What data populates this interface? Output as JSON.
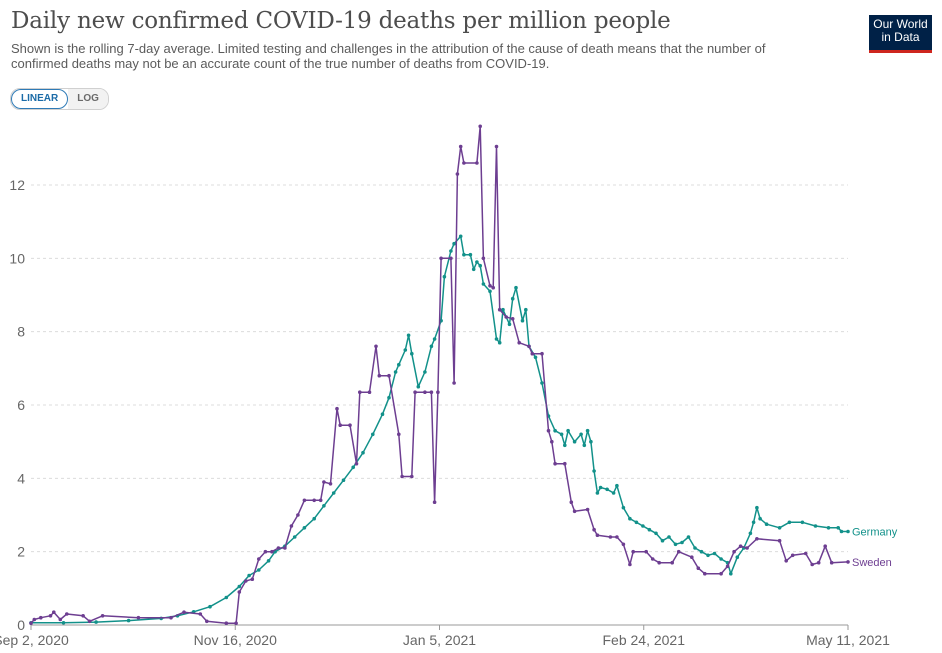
{
  "title": "Daily new confirmed COVID-19 deaths per million people",
  "subtitle": "Shown is the rolling 7-day average. Limited testing and challenges in the attribution of the cause of death means that the number of confirmed deaths may not be an accurate count of the true number of deaths from COVID-19.",
  "logo": {
    "line1": "Our World",
    "line2": "in Data",
    "bg": "#002147",
    "accent": "#ce261e"
  },
  "scale_toggle": {
    "linear": "LINEAR",
    "log": "LOG",
    "selected": "LINEAR"
  },
  "chart_data": {
    "type": "line",
    "title": "Daily new confirmed COVID-19 deaths per million people",
    "xlabel": "",
    "ylabel": "",
    "x_start": "2020-09-02",
    "x_end": "2021-05-11",
    "x_ticks": [
      "Sep 2, 2020",
      "Nov 16, 2020",
      "Jan 5, 2021",
      "Feb 24, 2021",
      "May 11, 2021"
    ],
    "ylim": [
      0,
      13.5
    ],
    "y_ticks": [
      0,
      2,
      4,
      6,
      8,
      10,
      12
    ],
    "grid": "horizontal dashed",
    "series": [
      {
        "name": "Germany",
        "color": "#12918a",
        "points": [
          [
            "2020-09-02",
            0.06
          ],
          [
            "2020-09-12",
            0.06
          ],
          [
            "2020-09-22",
            0.08
          ],
          [
            "2020-10-02",
            0.12
          ],
          [
            "2020-10-12",
            0.18
          ],
          [
            "2020-10-17",
            0.25
          ],
          [
            "2020-10-22",
            0.36
          ],
          [
            "2020-10-27",
            0.5
          ],
          [
            "2020-11-01",
            0.75
          ],
          [
            "2020-11-05",
            1.05
          ],
          [
            "2020-11-08",
            1.35
          ],
          [
            "2020-11-11",
            1.5
          ],
          [
            "2020-11-14",
            1.75
          ],
          [
            "2020-11-16",
            2.0
          ],
          [
            "2020-11-19",
            2.15
          ],
          [
            "2020-11-22",
            2.4
          ],
          [
            "2020-11-25",
            2.65
          ],
          [
            "2020-11-28",
            2.9
          ],
          [
            "2020-12-01",
            3.25
          ],
          [
            "2020-12-04",
            3.6
          ],
          [
            "2020-12-07",
            3.95
          ],
          [
            "2020-12-10",
            4.3
          ],
          [
            "2020-12-13",
            4.7
          ],
          [
            "2020-12-16",
            5.2
          ],
          [
            "2020-12-19",
            5.75
          ],
          [
            "2020-12-21",
            6.2
          ],
          [
            "2020-12-23",
            6.9
          ],
          [
            "2020-12-24",
            7.1
          ],
          [
            "2020-12-26",
            7.5
          ],
          [
            "2020-12-27",
            7.9
          ],
          [
            "2020-12-28",
            7.4
          ],
          [
            "2020-12-30",
            6.5
          ],
          [
            "2021-01-01",
            6.9
          ],
          [
            "2021-01-03",
            7.6
          ],
          [
            "2021-01-04",
            7.8
          ],
          [
            "2021-01-06",
            8.3
          ],
          [
            "2021-01-07",
            9.5
          ],
          [
            "2021-01-09",
            10.2
          ],
          [
            "2021-01-10",
            10.4
          ],
          [
            "2021-01-12",
            10.6
          ],
          [
            "2021-01-13",
            10.1
          ],
          [
            "2021-01-15",
            10.1
          ],
          [
            "2021-01-16",
            9.7
          ],
          [
            "2021-01-17",
            9.9
          ],
          [
            "2021-01-18",
            9.8
          ],
          [
            "2021-01-19",
            9.3
          ],
          [
            "2021-01-21",
            9.1
          ],
          [
            "2021-01-23",
            7.8
          ],
          [
            "2021-01-24",
            7.7
          ],
          [
            "2021-01-25",
            8.6
          ],
          [
            "2021-01-27",
            8.2
          ],
          [
            "2021-01-28",
            8.9
          ],
          [
            "2021-01-29",
            9.2
          ],
          [
            "2021-01-31",
            8.3
          ],
          [
            "2021-02-01",
            8.6
          ],
          [
            "2021-02-02",
            7.6
          ],
          [
            "2021-02-04",
            7.3
          ],
          [
            "2021-02-06",
            6.6
          ],
          [
            "2021-02-08",
            5.7
          ],
          [
            "2021-02-10",
            5.3
          ],
          [
            "2021-02-12",
            5.2
          ],
          [
            "2021-02-13",
            4.9
          ],
          [
            "2021-02-14",
            5.3
          ],
          [
            "2021-02-16",
            5.0
          ],
          [
            "2021-02-18",
            5.2
          ],
          [
            "2021-02-19",
            4.9
          ],
          [
            "2021-02-20",
            5.3
          ],
          [
            "2021-02-21",
            5.0
          ],
          [
            "2021-02-22",
            4.2
          ],
          [
            "2021-02-23",
            3.6
          ],
          [
            "2021-02-24",
            3.75
          ],
          [
            "2021-02-26",
            3.7
          ],
          [
            "2021-02-28",
            3.6
          ],
          [
            "2021-03-01",
            3.8
          ],
          [
            "2021-03-03",
            3.2
          ],
          [
            "2021-03-05",
            2.9
          ],
          [
            "2021-03-07",
            2.8
          ],
          [
            "2021-03-09",
            2.7
          ],
          [
            "2021-03-11",
            2.6
          ],
          [
            "2021-03-13",
            2.5
          ],
          [
            "2021-03-15",
            2.3
          ],
          [
            "2021-03-17",
            2.4
          ],
          [
            "2021-03-19",
            2.2
          ],
          [
            "2021-03-21",
            2.25
          ],
          [
            "2021-03-23",
            2.4
          ],
          [
            "2021-03-25",
            2.1
          ],
          [
            "2021-03-27",
            2.0
          ],
          [
            "2021-03-29",
            1.9
          ],
          [
            "2021-03-31",
            1.95
          ],
          [
            "2021-04-02",
            1.8
          ],
          [
            "2021-04-04",
            1.7
          ],
          [
            "2021-04-05",
            1.4
          ],
          [
            "2021-04-07",
            1.85
          ],
          [
            "2021-04-09",
            2.1
          ],
          [
            "2021-04-11",
            2.5
          ],
          [
            "2021-04-12",
            2.8
          ],
          [
            "2021-04-13",
            3.2
          ],
          [
            "2021-04-14",
            2.9
          ],
          [
            "2021-04-16",
            2.75
          ],
          [
            "2021-04-20",
            2.65
          ],
          [
            "2021-04-23",
            2.8
          ],
          [
            "2021-04-27",
            2.8
          ],
          [
            "2021-05-01",
            2.7
          ],
          [
            "2021-05-05",
            2.65
          ],
          [
            "2021-05-08",
            2.65
          ],
          [
            "2021-05-09",
            2.55
          ],
          [
            "2021-05-11",
            2.55
          ]
        ]
      },
      {
        "name": "Sweden",
        "color": "#6d3e91",
        "points": [
          [
            "2020-09-02",
            0.05
          ],
          [
            "2020-09-03",
            0.15
          ],
          [
            "2020-09-05",
            0.2
          ],
          [
            "2020-09-08",
            0.25
          ],
          [
            "2020-09-09",
            0.35
          ],
          [
            "2020-09-11",
            0.15
          ],
          [
            "2020-09-13",
            0.3
          ],
          [
            "2020-09-18",
            0.25
          ],
          [
            "2020-09-20",
            0.1
          ],
          [
            "2020-09-24",
            0.25
          ],
          [
            "2020-10-05",
            0.2
          ],
          [
            "2020-10-15",
            0.2
          ],
          [
            "2020-10-19",
            0.35
          ],
          [
            "2020-10-24",
            0.3
          ],
          [
            "2020-10-26",
            0.1
          ],
          [
            "2020-11-01",
            0.05
          ],
          [
            "2020-11-04",
            0.05
          ],
          [
            "2020-11-05",
            0.9
          ],
          [
            "2020-11-07",
            1.2
          ],
          [
            "2020-11-09",
            1.25
          ],
          [
            "2020-11-11",
            1.8
          ],
          [
            "2020-11-13",
            2.0
          ],
          [
            "2020-11-15",
            2.0
          ],
          [
            "2020-11-17",
            2.1
          ],
          [
            "2020-11-19",
            2.1
          ],
          [
            "2020-11-21",
            2.7
          ],
          [
            "2020-11-23",
            3.0
          ],
          [
            "2020-11-25",
            3.4
          ],
          [
            "2020-11-28",
            3.4
          ],
          [
            "2020-11-30",
            3.4
          ],
          [
            "2020-12-01",
            3.9
          ],
          [
            "2020-12-03",
            3.85
          ],
          [
            "2020-12-05",
            5.9
          ],
          [
            "2020-12-06",
            5.45
          ],
          [
            "2020-12-09",
            5.45
          ],
          [
            "2020-12-11",
            4.4
          ],
          [
            "2020-12-12",
            6.35
          ],
          [
            "2020-12-15",
            6.35
          ],
          [
            "2020-12-17",
            7.6
          ],
          [
            "2020-12-18",
            6.8
          ],
          [
            "2020-12-21",
            6.8
          ],
          [
            "2020-12-24",
            5.2
          ],
          [
            "2020-12-25",
            4.05
          ],
          [
            "2020-12-28",
            4.05
          ],
          [
            "2020-12-29",
            6.35
          ],
          [
            "2021-01-01",
            6.35
          ],
          [
            "2021-01-03",
            6.35
          ],
          [
            "2021-01-04",
            3.35
          ],
          [
            "2021-01-05",
            6.35
          ],
          [
            "2021-01-06",
            10.0
          ],
          [
            "2021-01-09",
            10.0
          ],
          [
            "2021-01-10",
            6.6
          ],
          [
            "2021-01-11",
            12.3
          ],
          [
            "2021-01-12",
            13.05
          ],
          [
            "2021-01-13",
            12.6
          ],
          [
            "2021-01-17",
            12.6
          ],
          [
            "2021-01-18",
            13.6
          ],
          [
            "2021-01-19",
            10.0
          ],
          [
            "2021-01-21",
            9.25
          ],
          [
            "2021-01-22",
            9.2
          ],
          [
            "2021-01-23",
            13.05
          ],
          [
            "2021-01-24",
            8.6
          ],
          [
            "2021-01-26",
            8.4
          ],
          [
            "2021-01-28",
            8.35
          ],
          [
            "2021-01-30",
            7.7
          ],
          [
            "2021-02-02",
            7.6
          ],
          [
            "2021-02-03",
            7.4
          ],
          [
            "2021-02-06",
            7.4
          ],
          [
            "2021-02-08",
            5.3
          ],
          [
            "2021-02-09",
            5.0
          ],
          [
            "2021-02-10",
            4.4
          ],
          [
            "2021-02-13",
            4.4
          ],
          [
            "2021-02-15",
            3.35
          ],
          [
            "2021-02-16",
            3.1
          ],
          [
            "2021-02-20",
            3.15
          ],
          [
            "2021-02-22",
            2.6
          ],
          [
            "2021-02-23",
            2.45
          ],
          [
            "2021-02-27",
            2.4
          ],
          [
            "2021-03-01",
            2.4
          ],
          [
            "2021-03-03",
            2.2
          ],
          [
            "2021-03-05",
            1.65
          ],
          [
            "2021-03-06",
            2.0
          ],
          [
            "2021-03-10",
            2.0
          ],
          [
            "2021-03-12",
            1.8
          ],
          [
            "2021-03-14",
            1.7
          ],
          [
            "2021-03-18",
            1.7
          ],
          [
            "2021-03-20",
            2.0
          ],
          [
            "2021-03-24",
            1.85
          ],
          [
            "2021-03-26",
            1.55
          ],
          [
            "2021-03-28",
            1.4
          ],
          [
            "2021-04-02",
            1.4
          ],
          [
            "2021-04-04",
            1.6
          ],
          [
            "2021-04-06",
            2.0
          ],
          [
            "2021-04-08",
            2.15
          ],
          [
            "2021-04-10",
            2.1
          ],
          [
            "2021-04-13",
            2.35
          ],
          [
            "2021-04-20",
            2.3
          ],
          [
            "2021-04-22",
            1.75
          ],
          [
            "2021-04-24",
            1.9
          ],
          [
            "2021-04-28",
            1.95
          ],
          [
            "2021-04-30",
            1.65
          ],
          [
            "2021-05-02",
            1.7
          ],
          [
            "2021-05-04",
            2.15
          ],
          [
            "2021-05-06",
            1.7
          ],
          [
            "2021-05-11",
            1.72
          ]
        ]
      }
    ]
  }
}
